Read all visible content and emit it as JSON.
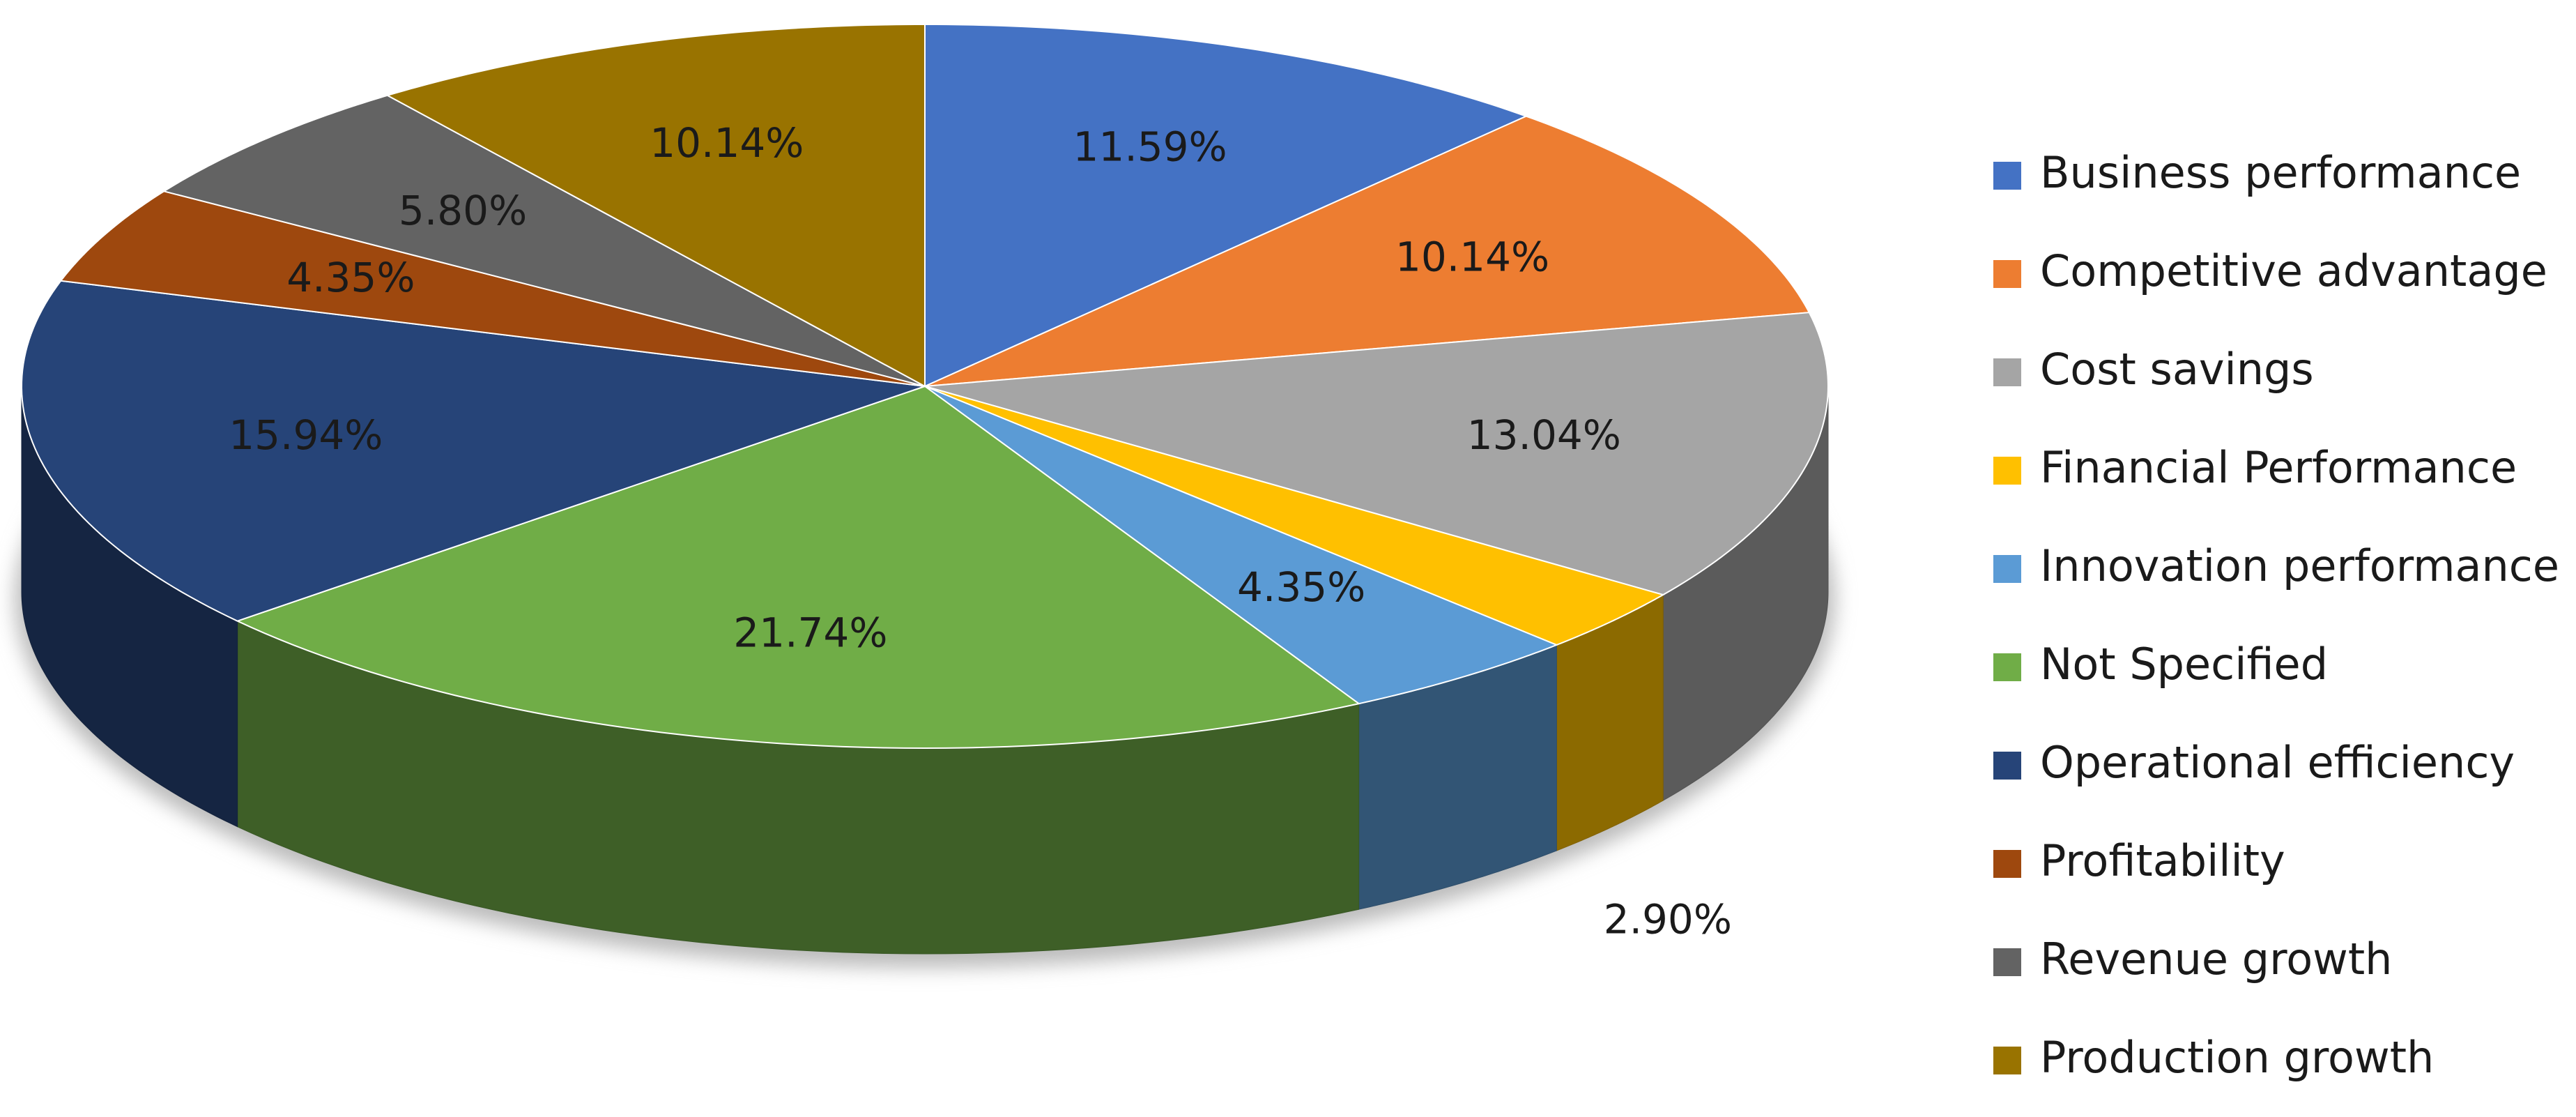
{
  "chart_data": {
    "type": "pie3d",
    "categories": [
      "Business performance",
      "Competitive advantage",
      "Cost savings",
      "Financial Performance",
      "Innovation performance",
      "Not Specified",
      "Operational efficiency",
      "Profitability",
      "Revenue growth",
      "Production growth"
    ],
    "values": [
      11.59,
      10.14,
      13.04,
      2.9,
      4.35,
      21.74,
      15.94,
      4.35,
      5.8,
      10.14
    ],
    "value_labels": [
      "11.59%",
      "10.14%",
      "13.04%",
      "2.90%",
      "4.35%",
      "21.74%",
      "15.94%",
      "4.35%",
      "5.80%",
      "10.14%"
    ],
    "colors": [
      "#4472c4",
      "#ed7d31",
      "#a5a5a5",
      "#ffc000",
      "#5b9bd5",
      "#70ad47",
      "#264478",
      "#9e480e",
      "#636363",
      "#997300"
    ],
    "legend": "right"
  }
}
